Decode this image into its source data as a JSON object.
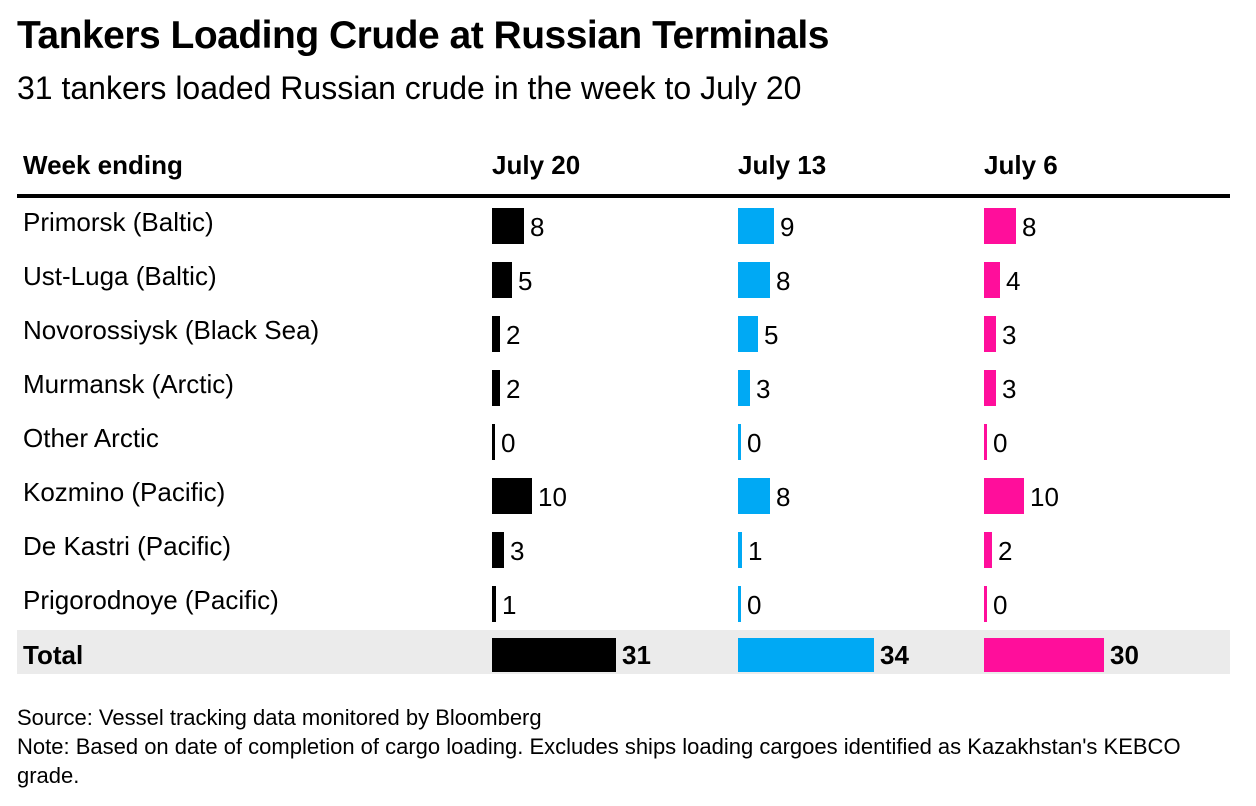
{
  "header": {
    "title": "Tankers Loading Crude at Russian Terminals",
    "subtitle": "31 tankers loaded Russian crude in the week to July 20"
  },
  "colors": {
    "July 20": "#000000",
    "July 13": "#00a9f4",
    "July 6": "#ff0e9b",
    "total_row_bg": "#ebebeb"
  },
  "chart_data": {
    "type": "table",
    "row_header": "Week ending",
    "columns": [
      "July 20",
      "July 13",
      "July 6"
    ],
    "rows": [
      {
        "label": "Primorsk (Baltic)",
        "values": [
          8,
          9,
          8
        ]
      },
      {
        "label": "Ust-Luga (Baltic)",
        "values": [
          5,
          8,
          4
        ]
      },
      {
        "label": "Novorossiysk (Black Sea)",
        "values": [
          2,
          5,
          3
        ]
      },
      {
        "label": "Murmansk (Arctic)",
        "values": [
          2,
          3,
          3
        ]
      },
      {
        "label": "Other Arctic",
        "values": [
          0,
          0,
          0
        ]
      },
      {
        "label": "Kozmino (Pacific)",
        "values": [
          10,
          8,
          10
        ]
      },
      {
        "label": "De Kastri (Pacific)",
        "values": [
          3,
          1,
          2
        ]
      },
      {
        "label": "Prigorodnoye (Pacific)",
        "values": [
          1,
          0,
          0
        ]
      }
    ],
    "total": {
      "label": "Total",
      "values": [
        31,
        34,
        30
      ]
    }
  },
  "footer": {
    "source": "Source: Vessel tracking data monitored by Bloomberg",
    "note": "Note: Based on date of completion of cargo loading. Excludes ships loading cargoes identified as Kazakhstan's KEBCO grade."
  }
}
